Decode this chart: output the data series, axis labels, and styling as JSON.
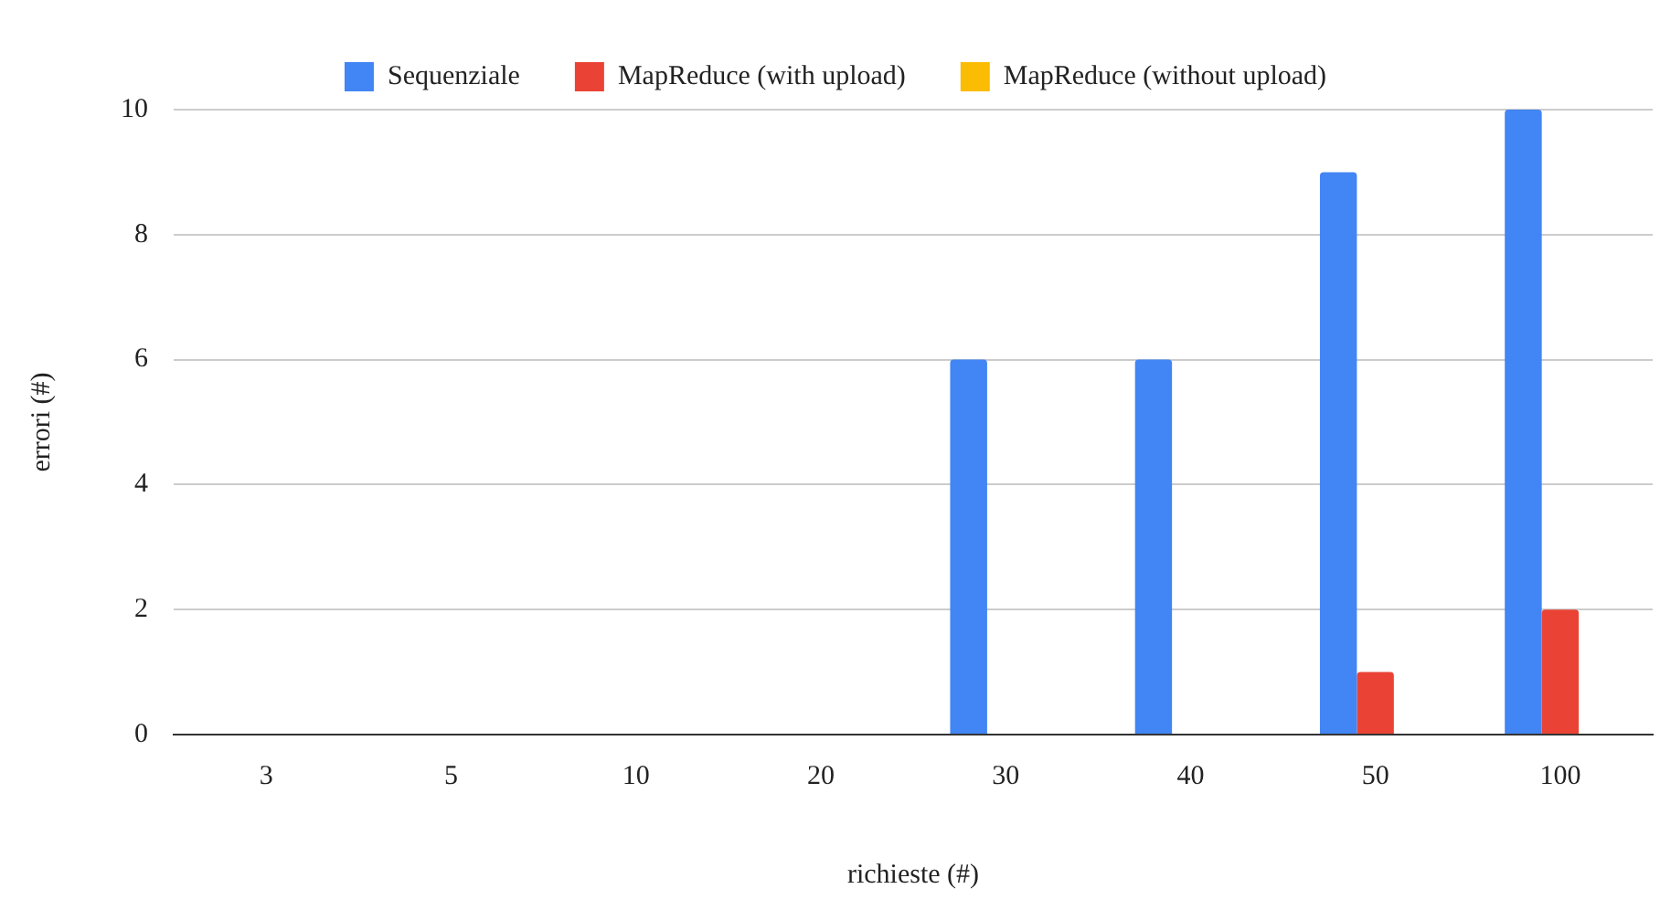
{
  "chart_data": {
    "type": "bar",
    "xlabel": "richieste (#)",
    "ylabel": "errori (#)",
    "categories": [
      "3",
      "5",
      "10",
      "20",
      "30",
      "40",
      "50",
      "100"
    ],
    "series": [
      {
        "name": "Sequenziale",
        "color": "#4285f4",
        "values": [
          0,
          0,
          0,
          0,
          6,
          6,
          9,
          10
        ]
      },
      {
        "name": "MapReduce (with upload)",
        "color": "#ea4335",
        "values": [
          0,
          0,
          0,
          0,
          0,
          0,
          1,
          2
        ]
      },
      {
        "name": "MapReduce (without upload)",
        "color": "#fbbc04",
        "values": [
          0,
          0,
          0,
          0,
          0,
          0,
          0,
          0
        ]
      }
    ],
    "ylim": [
      0,
      10
    ],
    "yticks": [
      0,
      2,
      4,
      6,
      8,
      10
    ],
    "grid": "y",
    "legend": "top"
  }
}
